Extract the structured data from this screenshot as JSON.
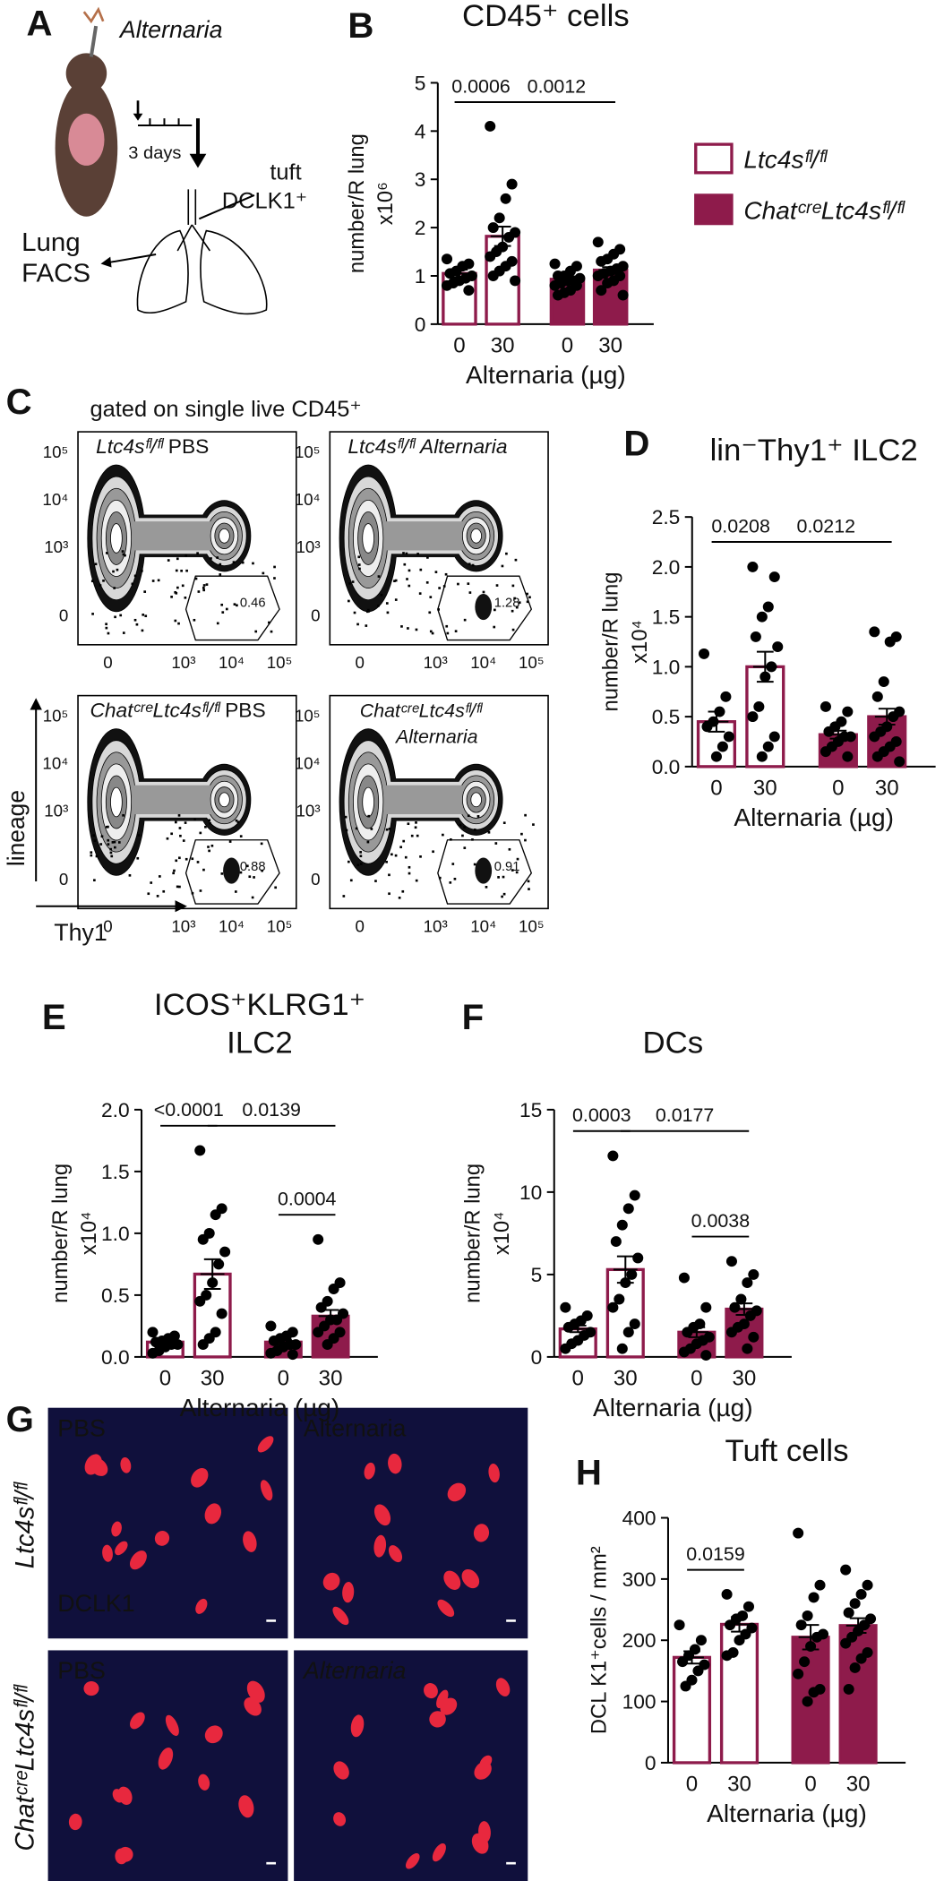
{
  "panel_a": {
    "label": "A",
    "title": "Alternaria",
    "timeline": "3 days",
    "tuft": "tuft",
    "marker": "DCLK1⁺",
    "lung": "Lung",
    "facs": "FACS"
  },
  "chart_data": [
    {
      "type": "bar",
      "label": "B",
      "title": "CD45⁺ cells",
      "ylabel": [
        "number/R lung",
        "x10⁶"
      ],
      "xlabel": "Alternaria (µg)",
      "categories": [
        "0",
        "30",
        "0",
        "30"
      ],
      "ylim": [
        0,
        5
      ],
      "yticks": [
        0,
        1,
        2,
        3,
        4,
        5
      ],
      "legend": "right",
      "series": [
        {
          "name": "Ltc4sᶠˡ/ᶠˡ",
          "color": "#8e1b4b",
          "style": "outline",
          "values": [
            1.05,
            1.82,
            null,
            null
          ],
          "errors": [
            0.08,
            0.2,
            null,
            null
          ],
          "points": [
            [
              1.35,
              1.25,
              1.2,
              1.1,
              1.05,
              1.0,
              0.95,
              0.9,
              0.85,
              0.8,
              0.7
            ],
            [
              4.1,
              2.9,
              2.6,
              2.2,
              2.0,
              1.9,
              1.8,
              1.6,
              1.5,
              1.4,
              1.3,
              1.2,
              1.1,
              1.0,
              0.9
            ],
            null,
            null
          ]
        },
        {
          "name": "ChatᶜʳᵉLtc4sᶠˡ/ᶠˡ",
          "color": "#8e1b4b",
          "style": "filled",
          "values": [
            null,
            null,
            0.93,
            1.12
          ],
          "errors": [
            null,
            null,
            0.05,
            0.06
          ],
          "points": [
            null,
            null,
            [
              1.25,
              1.2,
              1.1,
              1.0,
              1.0,
              0.95,
              0.9,
              0.9,
              0.85,
              0.8,
              0.8,
              0.7,
              0.65,
              0.6
            ],
            [
              1.7,
              1.55,
              1.45,
              1.35,
              1.3,
              1.2,
              1.15,
              1.1,
              1.05,
              1.0,
              1.0,
              0.9,
              0.85,
              0.7,
              0.6
            ]
          ]
        }
      ],
      "comparisons": [
        {
          "groups": [
            0,
            1
          ],
          "label": "0.0006"
        },
        {
          "groups": [
            1,
            3
          ],
          "label": "0.0012"
        }
      ]
    },
    {
      "type": "bar",
      "label": "D",
      "title": "lin⁻Thy1⁺ ILC2",
      "ylabel": [
        "number/R lung",
        "x10⁴"
      ],
      "xlabel": "Alternaria (µg)",
      "categories": [
        "0",
        "30",
        "0",
        "30"
      ],
      "ylim": [
        0,
        2.5
      ],
      "yticks": [
        {
          "value": 0,
          "label": "0.0"
        },
        0.5,
        {
          "value": 1,
          "label": "1.0"
        },
        1.5,
        {
          "value": 2,
          "label": "2.0"
        },
        2.5
      ],
      "series": [
        {
          "color": "#8e1b4b",
          "style": "outline",
          "values": [
            0.45,
            1.0,
            null,
            null
          ],
          "errors": [
            0.1,
            0.15,
            null,
            null
          ],
          "points": [
            [
              1.13,
              0.7,
              0.55,
              0.45,
              0.4,
              0.3,
              0.2,
              0.1
            ],
            [
              2.0,
              1.9,
              1.6,
              1.5,
              1.3,
              1.2,
              1.0,
              0.9,
              0.6,
              0.5,
              0.3,
              0.2,
              0.1
            ],
            null,
            null
          ]
        },
        {
          "color": "#8e1b4b",
          "style": "filled",
          "values": [
            null,
            null,
            0.32,
            0.5
          ],
          "errors": [
            null,
            null,
            0.04,
            0.08
          ],
          "points": [
            null,
            null,
            [
              0.6,
              0.55,
              0.45,
              0.4,
              0.35,
              0.3,
              0.3,
              0.25,
              0.2,
              0.15,
              0.1
            ],
            [
              1.35,
              1.3,
              1.25,
              0.85,
              0.7,
              0.55,
              0.5,
              0.4,
              0.35,
              0.3,
              0.25,
              0.2,
              0.15,
              0.1,
              0.05
            ]
          ]
        }
      ],
      "comparisons": [
        {
          "groups": [
            0,
            1
          ],
          "label": "0.0208"
        },
        {
          "groups": [
            1,
            3
          ],
          "label": "0.0212"
        }
      ]
    },
    {
      "type": "bar",
      "label": "E",
      "title": [
        "ICOS⁺KLRG1⁺",
        "ILC2"
      ],
      "ylabel": [
        "number/R lung",
        "x10⁴"
      ],
      "xlabel": "Alternaria (µg)",
      "categories": [
        "0",
        "30",
        "0",
        "30"
      ],
      "ylim": [
        0,
        2
      ],
      "yticks": [
        {
          "value": 0,
          "label": "0.0"
        },
        0.5,
        {
          "value": 1,
          "label": "1.0"
        },
        1.5,
        {
          "value": 2,
          "label": "2.0"
        }
      ],
      "series": [
        {
          "color": "#8e1b4b",
          "style": "outline",
          "values": [
            0.12,
            0.67,
            null,
            null
          ],
          "errors": [
            0.02,
            0.12,
            null,
            null
          ],
          "points": [
            [
              0.2,
              0.17,
              0.15,
              0.13,
              0.12,
              0.1,
              0.1,
              0.08,
              0.05,
              0.03
            ],
            [
              1.67,
              1.2,
              1.15,
              1.0,
              0.95,
              0.85,
              0.75,
              0.6,
              0.5,
              0.45,
              0.35,
              0.2,
              0.15,
              0.1
            ],
            null,
            null
          ]
        },
        {
          "color": "#8e1b4b",
          "style": "filled",
          "values": [
            null,
            null,
            0.12,
            0.33
          ],
          "errors": [
            null,
            null,
            0.02,
            0.05
          ],
          "points": [
            null,
            null,
            [
              0.25,
              0.2,
              0.17,
              0.15,
              0.13,
              0.1,
              0.1,
              0.08,
              0.05,
              0.03,
              0.02
            ],
            [
              0.95,
              0.6,
              0.55,
              0.45,
              0.4,
              0.35,
              0.3,
              0.3,
              0.25,
              0.2,
              0.2,
              0.15,
              0.1
            ]
          ]
        }
      ],
      "comparisons": [
        {
          "groups": [
            0,
            1
          ],
          "label": "<0.0001"
        },
        {
          "groups": [
            1,
            3
          ],
          "label": "0.0139"
        },
        {
          "groups": [
            2,
            3
          ],
          "label": "0.0004"
        }
      ]
    },
    {
      "type": "bar",
      "label": "F",
      "title": "DCs",
      "ylabel": [
        "number/R lung",
        "x10⁴"
      ],
      "xlabel": "Alternaria (µg)",
      "categories": [
        "0",
        "30",
        "0",
        "30"
      ],
      "ylim": [
        0,
        15
      ],
      "yticks": [
        0,
        5,
        10,
        15
      ],
      "series": [
        {
          "color": "#8e1b4b",
          "style": "outline",
          "values": [
            1.7,
            5.3,
            null,
            null
          ],
          "errors": [
            0.2,
            0.8,
            null,
            null
          ],
          "points": [
            [
              3.0,
              2.5,
              2.2,
              2.0,
              1.8,
              1.5,
              1.3,
              1.0,
              0.8,
              0.5
            ],
            [
              12.2,
              9.8,
              9.0,
              8.0,
              7.0,
              6.0,
              5.0,
              4.5,
              3.5,
              3.0,
              2.0,
              1.5,
              0.5
            ],
            null,
            null
          ]
        },
        {
          "color": "#8e1b4b",
          "style": "filled",
          "values": [
            null,
            null,
            1.5,
            2.9
          ],
          "errors": [
            null,
            null,
            0.3,
            0.35
          ],
          "points": [
            null,
            null,
            [
              4.8,
              3.0,
              2.0,
              1.8,
              1.5,
              1.2,
              1.0,
              0.8,
              0.5,
              0.3,
              0.1
            ],
            [
              5.8,
              5.0,
              4.5,
              3.5,
              3.0,
              2.8,
              2.5,
              2.0,
              1.8,
              1.5,
              1.2,
              0.5
            ]
          ]
        }
      ],
      "comparisons": [
        {
          "groups": [
            0,
            1
          ],
          "label": "0.0003"
        },
        {
          "groups": [
            1,
            3
          ],
          "label": "0.0177"
        },
        {
          "groups": [
            2,
            3
          ],
          "label": "0.0038"
        }
      ]
    },
    {
      "type": "bar",
      "label": "H",
      "title": "Tuft cells",
      "ylabel": [
        "DCL K1⁺cells / mm²"
      ],
      "xlabel": "Alternaria (µg)",
      "categories": [
        "0",
        "30",
        "0",
        "30"
      ],
      "ylim": [
        0,
        400
      ],
      "yticks": [
        0,
        100,
        200,
        300,
        400
      ],
      "series": [
        {
          "color": "#8e1b4b",
          "style": "outline",
          "values": [
            172,
            226,
            null,
            null
          ],
          "errors": [
            10,
            12,
            null,
            null
          ],
          "points": [
            [
              225,
              200,
              185,
              175,
              165,
              160,
              150,
              135,
              125
            ],
            [
              275,
              255,
              240,
              235,
              225,
              220,
              210,
              200,
              180,
              175
            ],
            null,
            null
          ]
        },
        {
          "color": "#8e1b4b",
          "style": "filled",
          "values": [
            null,
            null,
            205,
            224
          ],
          "errors": [
            null,
            null,
            20,
            12
          ],
          "points": [
            null,
            null,
            [
              375,
              290,
              270,
              240,
              225,
              210,
              205,
              190,
              165,
              145,
              120,
              115,
              100
            ],
            [
              315,
              290,
              275,
              260,
              245,
              235,
              225,
              215,
              205,
              195,
              180,
              170,
              155,
              120
            ]
          ]
        }
      ],
      "comparisons": [
        {
          "groups": [
            0,
            1
          ],
          "label": "0.0159"
        }
      ]
    }
  ],
  "panel_c": {
    "label": "C",
    "gating": "gated on single live CD45⁺",
    "yticks": [
      "10⁵",
      "10⁴",
      "10³",
      "0"
    ],
    "xticks": [
      "0",
      "10³",
      "10⁴",
      "10⁵"
    ],
    "ylabel": "lineage",
    "xlabel": "Thy1",
    "plots": [
      {
        "genotype": "Ltc4sᶠˡ/ᶠˡ",
        "condition": "PBS",
        "gate": "0.46"
      },
      {
        "genotype": "Ltc4sᶠˡ/ᶠˡ",
        "condition": "Alternaria",
        "gate": "1.28"
      },
      {
        "genotype": "ChatᶜʳᵉLtc4sᶠˡ/ᶠˡ",
        "condition": "PBS",
        "gate": "0.88"
      },
      {
        "genotype": "ChatᶜʳᵉLtc4sᶠˡ/ᶠˡ",
        "condition": "Alternaria",
        "gate": "0.91"
      }
    ]
  },
  "panel_g": {
    "label": "G",
    "rows": [
      "Ltc4sᶠˡ/ᶠˡ",
      "ChatᶜʳᵉLtc4sᶠˡ/ᶠˡ"
    ],
    "stain": "DCLK1",
    "images": [
      "PBS",
      "Alternaria",
      "PBS",
      "Alternaria"
    ]
  }
}
